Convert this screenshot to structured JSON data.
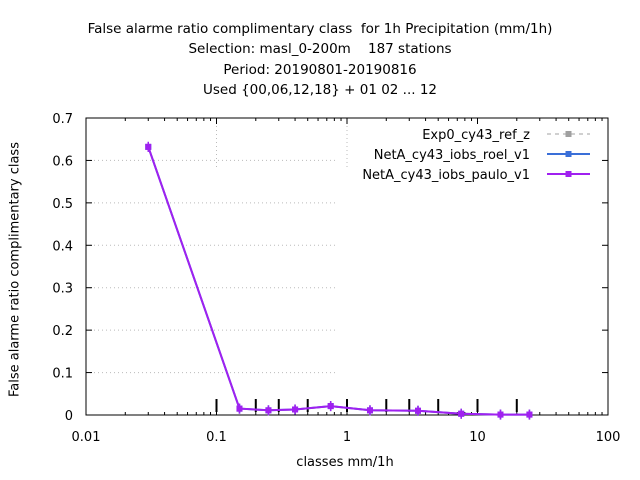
{
  "chart_data": {
    "type": "line",
    "title_lines": [
      "False alarme ratio complimentary class  for 1h Precipitation (mm/1h)",
      "Selection: masl_0-200m    187 stations",
      "Period: 20190801-20190816",
      "Used {00,06,12,18} + 01 02 ... 12"
    ],
    "xlabel": "classes mm/1h",
    "ylabel": "False alarme ratio complimentary class",
    "x_scale": "log",
    "xlim": [
      0.01,
      100
    ],
    "ylim": [
      0,
      0.7
    ],
    "x_ticks": [
      0.01,
      0.1,
      1,
      10,
      100
    ],
    "x_tick_labels": [
      "0.01",
      "0.1",
      "1",
      "10",
      "100"
    ],
    "y_ticks": [
      0,
      0.1,
      0.2,
      0.3,
      0.4,
      0.5,
      0.6,
      0.7
    ],
    "y_tick_labels": [
      "0",
      "0.1",
      "0.2",
      "0.3",
      "0.4",
      "0.5",
      "0.6",
      "0.7"
    ],
    "grid": "dotted, upper-left region only",
    "legend_position": "top-right",
    "class_markers_x": [
      0.1,
      0.2,
      0.3,
      0.5,
      1,
      2,
      3,
      5,
      10,
      20
    ],
    "series": [
      {
        "name": "Exp0_cy43_ref_z",
        "color": "#a0a0a0",
        "style": "dashed",
        "x": [],
        "y": []
      },
      {
        "name": "NetA_cy43_iobs_roel_v1",
        "color": "#3a6fd8",
        "style": "solid",
        "x": [
          0.03,
          0.15,
          0.25,
          0.4,
          0.75,
          1.5,
          3.5,
          7.5,
          15,
          25
        ],
        "y": [
          0.632,
          0.015,
          0.011,
          0.013,
          0.021,
          0.011,
          0.01,
          0.003,
          0.001,
          0.001
        ]
      },
      {
        "name": "NetA_cy43_iobs_paulo_v1",
        "color": "#a020f0",
        "style": "solid",
        "x": [
          0.03,
          0.15,
          0.25,
          0.4,
          0.75,
          1.5,
          3.5,
          7.5,
          15,
          25
        ],
        "y": [
          0.632,
          0.015,
          0.011,
          0.013,
          0.021,
          0.011,
          0.01,
          0.003,
          0.001,
          0.001
        ]
      }
    ]
  }
}
